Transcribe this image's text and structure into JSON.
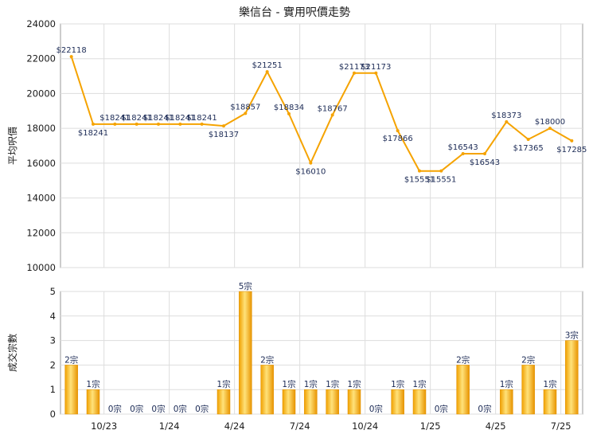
{
  "chart_data": {
    "title": "樂信台 - 實用呎價走勢",
    "x_tick_labels": [
      "10/23",
      "1/24",
      "4/24",
      "7/24",
      "10/24",
      "1/25",
      "4/25",
      "7/25"
    ],
    "price": {
      "type": "line",
      "ylabel": "平均呎價",
      "ylim": [
        10000,
        24000
      ],
      "y_ticks": [
        "10000",
        "12000",
        "14000",
        "16000",
        "18000",
        "20000",
        "22000",
        "24000"
      ],
      "grid": true,
      "color": "#f5a300",
      "values": [
        22118,
        18241,
        18241,
        18241,
        18241,
        18241,
        18241,
        18137,
        18857,
        21251,
        18834,
        16010,
        18767,
        21173,
        21173,
        17866,
        15551,
        15551,
        16543,
        16543,
        18373,
        17365,
        18000,
        17285
      ],
      "labels": [
        "$22118",
        "$18241",
        "$18241",
        "$18241",
        "$18241",
        "$18241",
        "$18241",
        "$18137",
        "$18857",
        "$21251",
        "$18834",
        "$16010",
        "$18767",
        "$21173",
        "$21173",
        "$17866",
        "$15551",
        "$15551",
        "$16543",
        "$16543",
        "$18373",
        "$17365",
        "$18000",
        "$17285"
      ]
    },
    "volume": {
      "type": "bar",
      "ylabel": "成交宗數",
      "ylim": [
        0,
        5
      ],
      "y_ticks": [
        "0",
        "1",
        "2",
        "3",
        "4",
        "5"
      ],
      "grid": true,
      "color": "#f5a300",
      "values": [
        2,
        1,
        0,
        0,
        0,
        0,
        0,
        1,
        5,
        2,
        1,
        1,
        1,
        1,
        0,
        1,
        1,
        0,
        2,
        0,
        1,
        2,
        1,
        3
      ],
      "labels": [
        "2宗",
        "1宗",
        "0宗",
        "0宗",
        "0宗",
        "0宗",
        "0宗",
        "1宗",
        "5宗",
        "2宗",
        "1宗",
        "1宗",
        "1宗",
        "1宗",
        "0宗",
        "1宗",
        "1宗",
        "0宗",
        "2宗",
        "0宗",
        "1宗",
        "2宗",
        "1宗",
        "3宗"
      ]
    }
  }
}
